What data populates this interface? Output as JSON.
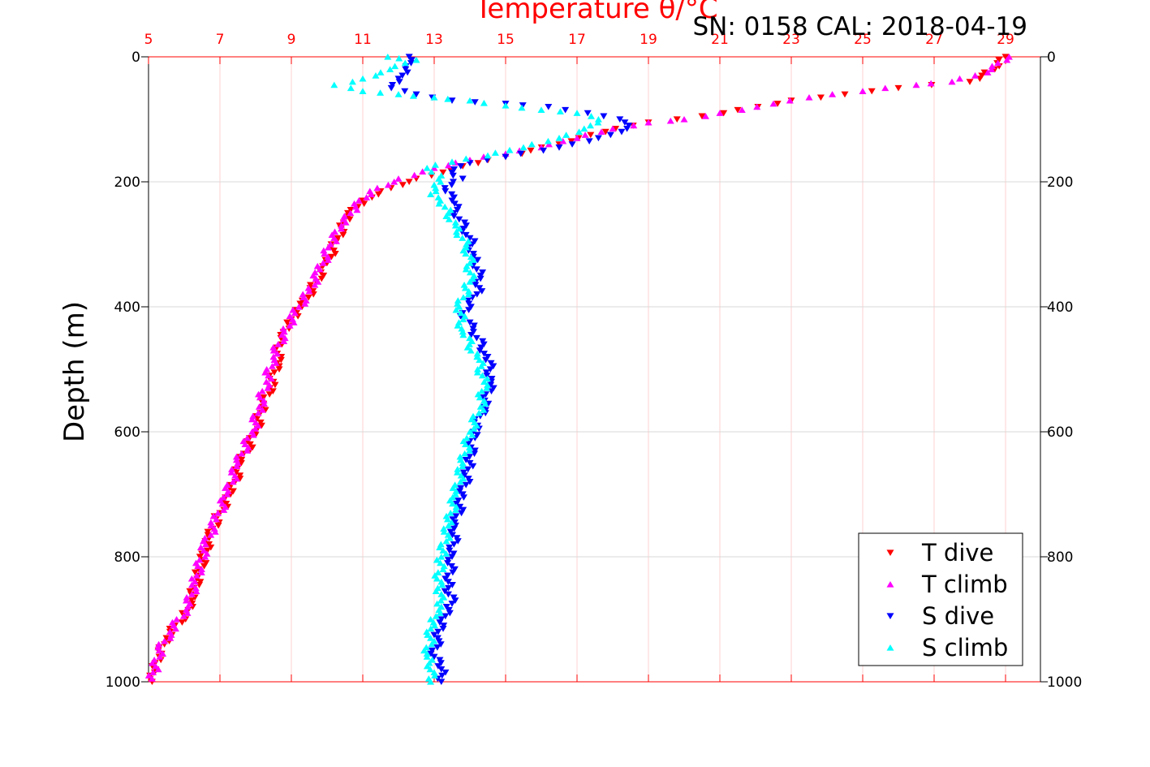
{
  "chart_data": {
    "type": "scatter",
    "title": "Temperature θ/°C",
    "annotation": "SN: 0158  CAL: 2018-04-19",
    "xlabel": "Temperature θ/°C",
    "ylabel": "Depth (m)",
    "xlim": [
      5,
      29
    ],
    "ylim": [
      1000,
      0
    ],
    "y_reversed": true,
    "grid": true,
    "x_ticks": [
      "5",
      "7",
      "9",
      "11",
      "13",
      "15",
      "17",
      "19",
      "21",
      "23",
      "25",
      "27",
      "29"
    ],
    "y_ticks_left": [
      "0",
      "200",
      "400",
      "600",
      "800",
      "1000"
    ],
    "y_ticks_right": [
      "0",
      "200",
      "400",
      "600",
      "800",
      "1000"
    ],
    "legend_position": "bottom-right",
    "series": [
      {
        "name": "T dive",
        "marker": "triangle-down",
        "color": "#ff0000",
        "points": [
          [
            29.0,
            0
          ],
          [
            28.7,
            20
          ],
          [
            28.0,
            40
          ],
          [
            26.0,
            50
          ],
          [
            24.5,
            60
          ],
          [
            23.0,
            70
          ],
          [
            21.5,
            85
          ],
          [
            20.5,
            95
          ],
          [
            19.0,
            105
          ],
          [
            17.8,
            120
          ],
          [
            16.5,
            140
          ],
          [
            15.0,
            160
          ],
          [
            13.8,
            175
          ],
          [
            12.5,
            195
          ],
          [
            11.5,
            215
          ],
          [
            11.0,
            230
          ],
          [
            10.6,
            255
          ],
          [
            10.3,
            290
          ],
          [
            10.0,
            330
          ],
          [
            9.7,
            360
          ],
          [
            9.3,
            400
          ],
          [
            9.0,
            420
          ],
          [
            8.7,
            445
          ],
          [
            8.6,
            490
          ],
          [
            8.4,
            530
          ],
          [
            8.2,
            560
          ],
          [
            8.0,
            600
          ],
          [
            7.6,
            650
          ],
          [
            7.3,
            700
          ],
          [
            7.0,
            730
          ],
          [
            6.7,
            770
          ],
          [
            6.4,
            830
          ],
          [
            6.2,
            870
          ],
          [
            6.0,
            895
          ],
          [
            5.5,
            930
          ],
          [
            5.3,
            960
          ],
          [
            5.2,
            980
          ],
          [
            5.1,
            1000
          ]
        ]
      },
      {
        "name": "T climb",
        "marker": "triangle-up",
        "color": "#ff00ff",
        "points": [
          [
            29.1,
            0
          ],
          [
            28.5,
            25
          ],
          [
            27.5,
            40
          ],
          [
            26.5,
            45
          ],
          [
            25.0,
            55
          ],
          [
            23.5,
            65
          ],
          [
            22.5,
            75
          ],
          [
            21.0,
            90
          ],
          [
            20.0,
            100
          ],
          [
            19.0,
            105
          ],
          [
            18.0,
            115
          ],
          [
            17.0,
            130
          ],
          [
            16.0,
            145
          ],
          [
            15.0,
            155
          ],
          [
            14.0,
            165
          ],
          [
            13.0,
            178
          ],
          [
            12.0,
            195
          ],
          [
            11.2,
            215
          ],
          [
            10.8,
            240
          ],
          [
            10.4,
            270
          ],
          [
            10.1,
            300
          ],
          [
            9.8,
            340
          ],
          [
            9.5,
            375
          ],
          [
            9.1,
            410
          ],
          [
            8.8,
            440
          ],
          [
            8.5,
            480
          ],
          [
            8.3,
            520
          ],
          [
            8.1,
            560
          ],
          [
            7.9,
            600
          ],
          [
            7.5,
            650
          ],
          [
            7.2,
            700
          ],
          [
            6.9,
            740
          ],
          [
            6.6,
            780
          ],
          [
            6.3,
            840
          ],
          [
            6.1,
            880
          ],
          [
            5.6,
            920
          ],
          [
            5.3,
            950
          ],
          [
            5.2,
            975
          ],
          [
            5.1,
            995
          ]
        ]
      },
      {
        "name": "S dive",
        "marker": "triangle-down",
        "color": "#0000ff",
        "points": [
          [
            12.3,
            0
          ],
          [
            12.2,
            20
          ],
          [
            12.0,
            35
          ],
          [
            11.8,
            50
          ],
          [
            12.5,
            60
          ],
          [
            13.5,
            70
          ],
          [
            15.0,
            75
          ],
          [
            16.2,
            80
          ],
          [
            17.3,
            90
          ],
          [
            18.2,
            100
          ],
          [
            18.4,
            115
          ],
          [
            17.6,
            130
          ],
          [
            16.5,
            145
          ],
          [
            15.0,
            160
          ],
          [
            14.0,
            170
          ],
          [
            13.5,
            185
          ],
          [
            13.8,
            195
          ],
          [
            13.3,
            210
          ],
          [
            13.5,
            230
          ],
          [
            13.7,
            260
          ],
          [
            14.0,
            290
          ],
          [
            14.1,
            320
          ],
          [
            14.3,
            350
          ],
          [
            14.2,
            380
          ],
          [
            13.8,
            410
          ],
          [
            14.1,
            440
          ],
          [
            14.5,
            480
          ],
          [
            14.6,
            520
          ],
          [
            14.4,
            560
          ],
          [
            14.1,
            600
          ],
          [
            14.0,
            650
          ],
          [
            13.8,
            700
          ],
          [
            13.6,
            750
          ],
          [
            13.5,
            800
          ],
          [
            13.4,
            850
          ],
          [
            13.5,
            875
          ],
          [
            13.2,
            900
          ],
          [
            13.1,
            930
          ],
          [
            13.0,
            960
          ],
          [
            13.2,
            980
          ],
          [
            13.2,
            1000
          ]
        ]
      },
      {
        "name": "S climb",
        "marker": "triangle-up",
        "color": "#00ffff",
        "points": [
          [
            11.7,
            0
          ],
          [
            12.5,
            5
          ],
          [
            11.9,
            15
          ],
          [
            11.5,
            25
          ],
          [
            11.0,
            35
          ],
          [
            10.2,
            45
          ],
          [
            11.0,
            55
          ],
          [
            12.0,
            60
          ],
          [
            13.0,
            65
          ],
          [
            14.0,
            70
          ],
          [
            15.0,
            78
          ],
          [
            16.0,
            85
          ],
          [
            17.0,
            90
          ],
          [
            17.6,
            100
          ],
          [
            17.2,
            115
          ],
          [
            16.5,
            130
          ],
          [
            15.5,
            145
          ],
          [
            14.5,
            158
          ],
          [
            13.5,
            168
          ],
          [
            12.8,
            178
          ],
          [
            13.2,
            190
          ],
          [
            13.0,
            205
          ],
          [
            12.9,
            220
          ],
          [
            13.3,
            240
          ],
          [
            13.6,
            270
          ],
          [
            13.9,
            300
          ],
          [
            14.0,
            330
          ],
          [
            14.0,
            360
          ],
          [
            13.7,
            400
          ],
          [
            13.8,
            440
          ],
          [
            14.2,
            480
          ],
          [
            14.4,
            520
          ],
          [
            14.3,
            560
          ],
          [
            14.0,
            600
          ],
          [
            13.8,
            650
          ],
          [
            13.6,
            700
          ],
          [
            13.4,
            750
          ],
          [
            13.2,
            800
          ],
          [
            13.1,
            850
          ],
          [
            13.2,
            880
          ],
          [
            12.9,
            900
          ],
          [
            12.9,
            930
          ],
          [
            12.8,
            960
          ],
          [
            13.0,
            985
          ],
          [
            12.9,
            1000
          ]
        ]
      }
    ]
  },
  "colors": {
    "axis_top": "#ff0000",
    "axis_left": "#000000",
    "grid_vertical": "#ffd0d0",
    "grid_horizontal": "#d9d9d9"
  }
}
